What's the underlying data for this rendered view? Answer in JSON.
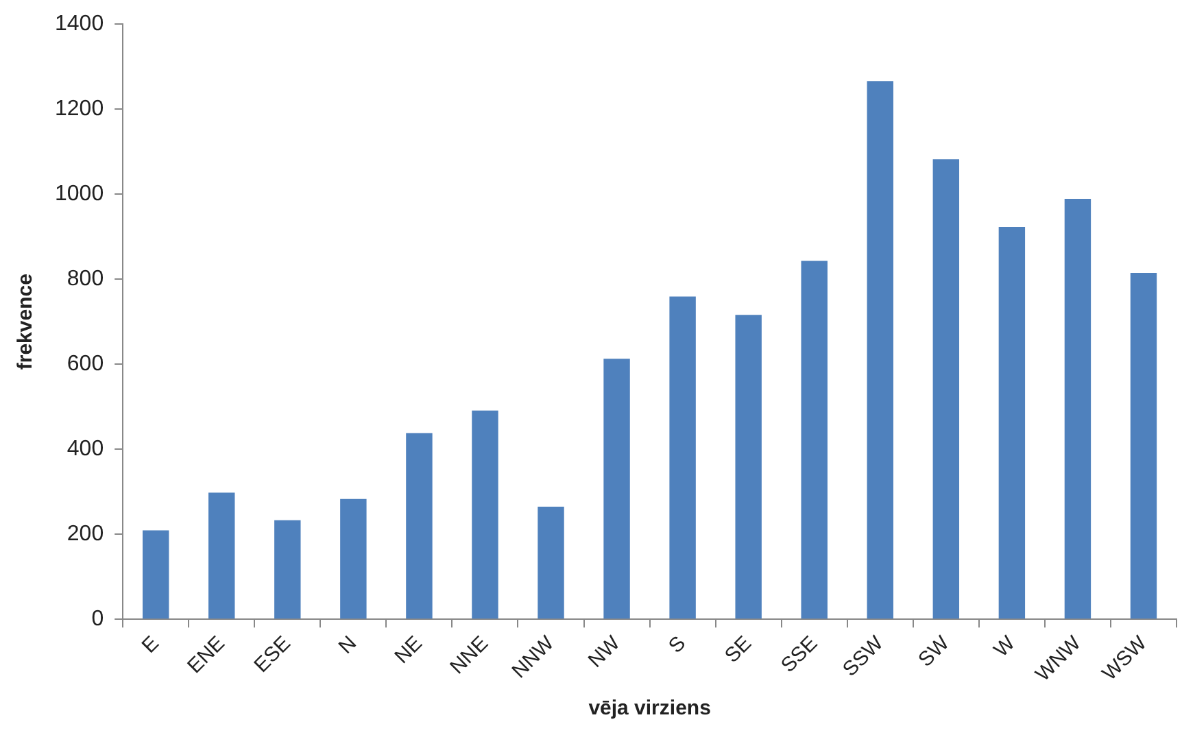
{
  "chart_data": {
    "type": "bar",
    "xlabel": "vēja virziens",
    "ylabel": "frekvence",
    "categories": [
      "E",
      "ENE",
      "ESE",
      "N",
      "NE",
      "NNE",
      "NNW",
      "NW",
      "S",
      "SE",
      "SSE",
      "SSW",
      "SW",
      "W",
      "WNW",
      "WSW"
    ],
    "values": [
      209,
      298,
      233,
      283,
      438,
      491,
      265,
      613,
      759,
      716,
      843,
      1266,
      1082,
      923,
      989,
      815
    ],
    "color": "#4f81bd",
    "ylim": [
      0,
      1400
    ],
    "yticks": [
      0,
      200,
      400,
      600,
      800,
      1000,
      1200,
      1400
    ],
    "grid": false,
    "legend": false
  }
}
